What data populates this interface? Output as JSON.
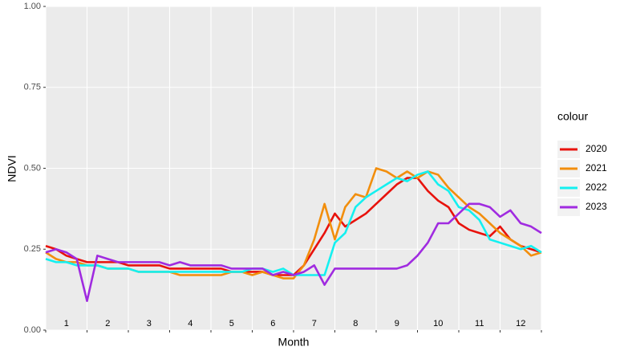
{
  "chart_data": {
    "type": "line",
    "x_label": "Month",
    "y_label": "NDVI",
    "legend_title": "colour",
    "month_labels": [
      "1",
      "2",
      "3",
      "4",
      "5",
      "6",
      "7",
      "8",
      "9",
      "10",
      "11",
      "12"
    ],
    "x": [
      0,
      0.25,
      0.5,
      0.75,
      1,
      1.25,
      1.5,
      1.75,
      2,
      2.25,
      2.5,
      2.75,
      3,
      3.25,
      3.5,
      3.75,
      4,
      4.25,
      4.5,
      4.75,
      5,
      5.25,
      5.5,
      5.75,
      6,
      6.25,
      6.5,
      6.75,
      7,
      7.25,
      7.5,
      7.75,
      8,
      8.25,
      8.5,
      8.75,
      9,
      9.25,
      9.5,
      9.75,
      10,
      10.25,
      10.5,
      10.75,
      11,
      11.25,
      11.5,
      11.75,
      12
    ],
    "xlim": [
      0,
      12
    ],
    "xticks": [
      0,
      1,
      2,
      3,
      4,
      5,
      6,
      7,
      8,
      9,
      10,
      11,
      12
    ],
    "ylim": [
      0,
      1
    ],
    "yticks": [
      {
        "value": 0,
        "label": "0.00"
      },
      {
        "value": 0.25,
        "label": "0.25"
      },
      {
        "value": 0.5,
        "label": "0.50"
      },
      {
        "value": 0.75,
        "label": "0.75"
      },
      {
        "value": 1,
        "label": "1.00"
      }
    ],
    "grid": true,
    "legend": "right",
    "series": [
      {
        "name": "2020",
        "color": "#e8120c",
        "values": [
          0.26,
          0.25,
          0.23,
          0.22,
          0.21,
          0.21,
          0.21,
          0.21,
          0.2,
          0.2,
          0.2,
          0.2,
          0.19,
          0.19,
          0.19,
          0.19,
          0.19,
          0.19,
          0.18,
          0.18,
          0.18,
          0.18,
          0.17,
          0.17,
          0.17,
          0.2,
          0.25,
          0.3,
          0.36,
          0.32,
          0.34,
          0.36,
          0.39,
          0.42,
          0.45,
          0.47,
          0.47,
          0.43,
          0.4,
          0.38,
          0.33,
          0.31,
          0.3,
          0.29,
          0.32,
          0.28,
          0.26,
          0.25,
          0.24
        ]
      },
      {
        "name": "2021",
        "color": "#f28e0c",
        "values": [
          0.24,
          0.22,
          0.21,
          0.21,
          0.2,
          0.2,
          0.19,
          0.19,
          0.19,
          0.18,
          0.18,
          0.18,
          0.18,
          0.17,
          0.17,
          0.17,
          0.17,
          0.17,
          0.18,
          0.18,
          0.17,
          0.18,
          0.17,
          0.16,
          0.16,
          0.2,
          0.28,
          0.39,
          0.28,
          0.38,
          0.42,
          0.41,
          0.5,
          0.49,
          0.47,
          0.49,
          0.47,
          0.49,
          0.48,
          0.44,
          0.41,
          0.38,
          0.36,
          0.33,
          0.3,
          0.28,
          0.26,
          0.23,
          0.24
        ]
      },
      {
        "name": "2022",
        "color": "#14f0f0",
        "values": [
          0.22,
          0.21,
          0.21,
          0.2,
          0.2,
          0.2,
          0.19,
          0.19,
          0.19,
          0.18,
          0.18,
          0.18,
          0.18,
          0.18,
          0.18,
          0.18,
          0.18,
          0.18,
          0.18,
          0.18,
          0.19,
          0.19,
          0.18,
          0.19,
          0.17,
          0.17,
          0.17,
          0.17,
          0.27,
          0.3,
          0.38,
          0.41,
          0.43,
          0.45,
          0.47,
          0.46,
          0.48,
          0.49,
          0.45,
          0.43,
          0.38,
          0.37,
          0.34,
          0.28,
          0.27,
          0.26,
          0.25,
          0.26,
          0.24
        ]
      },
      {
        "name": "2023",
        "color": "#a02be0",
        "values": [
          0.24,
          0.25,
          0.24,
          0.22,
          0.09,
          0.23,
          0.22,
          0.21,
          0.21,
          0.21,
          0.21,
          0.21,
          0.2,
          0.21,
          0.2,
          0.2,
          0.2,
          0.2,
          0.19,
          0.19,
          0.19,
          0.19,
          0.17,
          0.18,
          0.17,
          0.18,
          0.2,
          0.14,
          0.19,
          0.19,
          0.19,
          0.19,
          0.19,
          0.19,
          0.19,
          0.2,
          0.23,
          0.27,
          0.33,
          0.33,
          0.36,
          0.39,
          0.39,
          0.38,
          0.35,
          0.37,
          0.33,
          0.32,
          0.3
        ]
      }
    ]
  }
}
